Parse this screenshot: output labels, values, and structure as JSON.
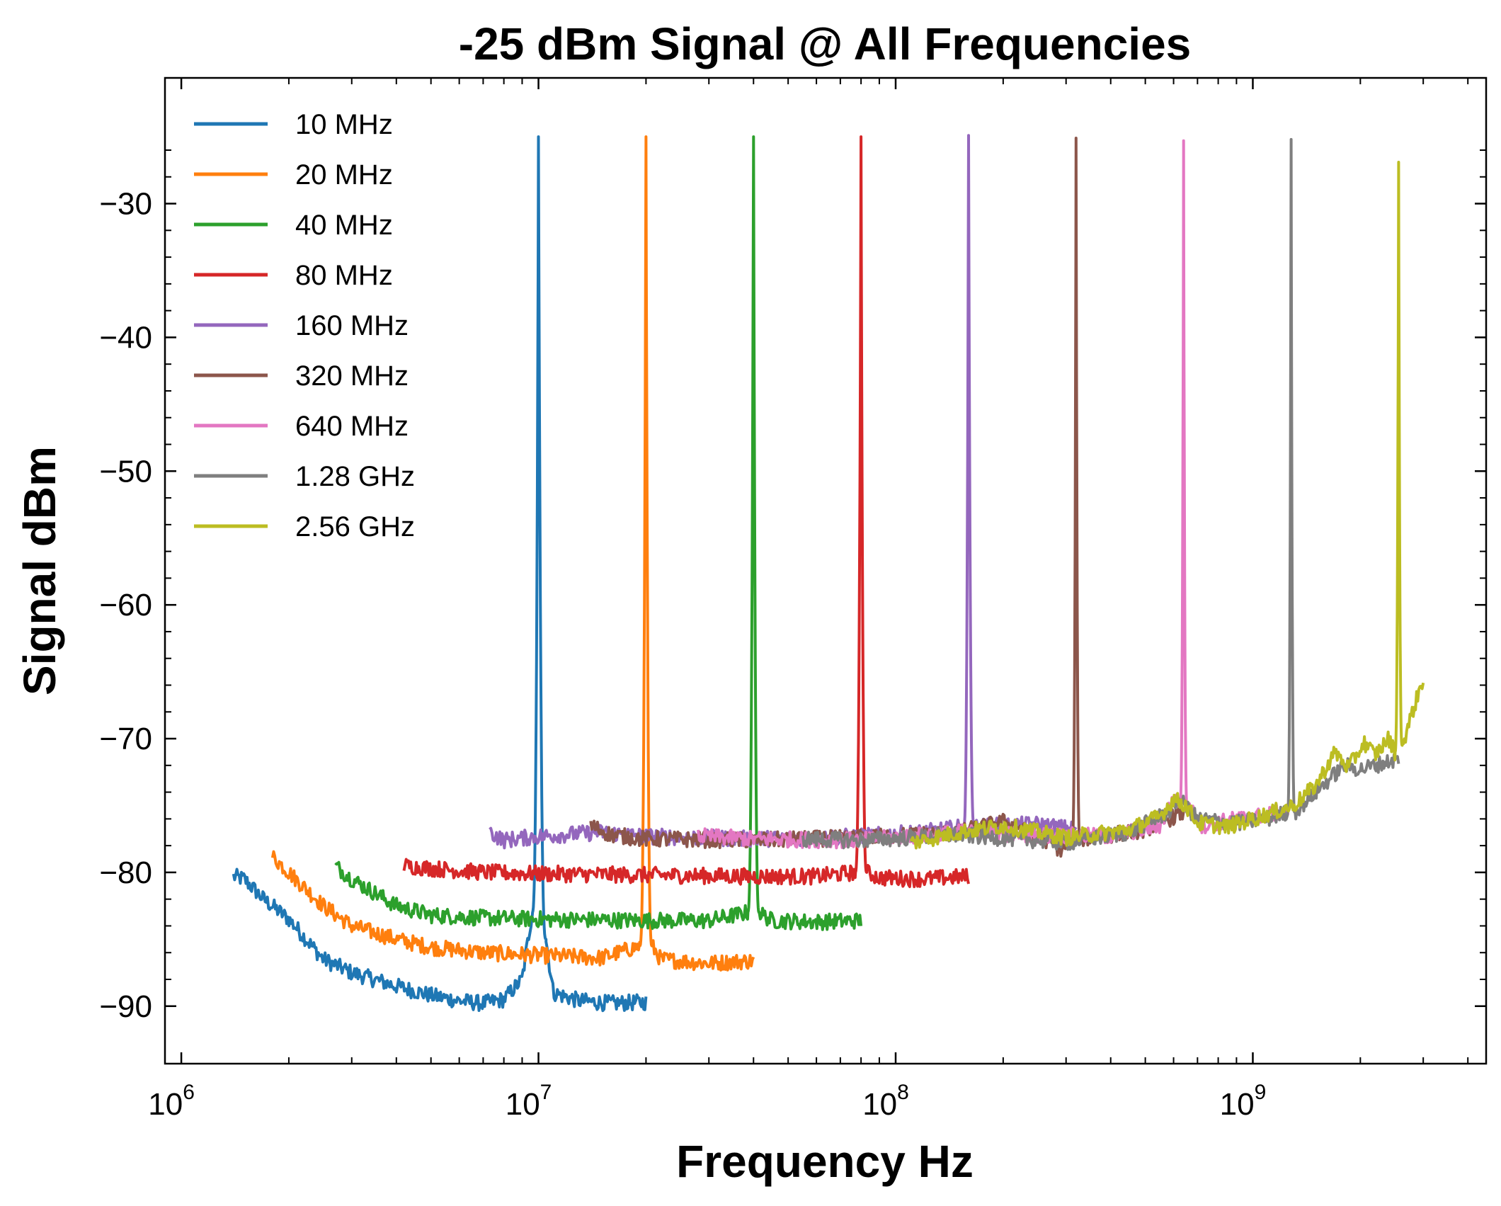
{
  "chart_data": {
    "type": "line",
    "title": "-25 dBm Signal @ All Frequencies",
    "xlabel": "Frequency Hz",
    "ylabel": "Signal dBm",
    "x_scale": "log",
    "xlim": [
      900000,
      4500000000
    ],
    "ylim": [
      -94.3,
      -20.6
    ],
    "x_ticks": [
      {
        "value": 1000000,
        "base": "10",
        "exp": "6"
      },
      {
        "value": 10000000,
        "base": "10",
        "exp": "7"
      },
      {
        "value": 100000000,
        "base": "10",
        "exp": "8"
      },
      {
        "value": 1000000000,
        "base": "10",
        "exp": "9"
      }
    ],
    "y_ticks": [
      {
        "value": -30,
        "label": "−30"
      },
      {
        "value": -40,
        "label": "−40"
      },
      {
        "value": -50,
        "label": "−50"
      },
      {
        "value": -60,
        "label": "−60"
      },
      {
        "value": -70,
        "label": "−70"
      },
      {
        "value": -80,
        "label": "−80"
      },
      {
        "value": -90,
        "label": "−90"
      }
    ],
    "grid": false,
    "legend": "top-left",
    "series": [
      {
        "name": "10 MHz",
        "color": "#1f77b4",
        "peak_freq": 10000000,
        "peak_dbm": -25.0,
        "points": [
          [
            1400000,
            -80.3
          ],
          [
            1500000,
            -80.5
          ],
          [
            1700000,
            -82.0
          ],
          [
            2000000,
            -83.5
          ],
          [
            2500000,
            -86.5
          ],
          [
            3000000,
            -87.5
          ],
          [
            4000000,
            -88.5
          ],
          [
            5000000,
            -89.2
          ],
          [
            6000000,
            -89.6
          ],
          [
            7000000,
            -89.8
          ],
          [
            8000000,
            -89.5
          ],
          [
            9000000,
            -88.0
          ],
          [
            9600000,
            -83.0
          ]
        ],
        "points_after": [
          [
            10500000,
            -85.0
          ],
          [
            11000000,
            -89.0
          ],
          [
            13000000,
            -89.6
          ],
          [
            16000000,
            -89.8
          ],
          [
            20000000,
            -89.7
          ]
        ]
      },
      {
        "name": "20 MHz",
        "color": "#ff7f0e",
        "peak_freq": 20000000,
        "peak_dbm": -25.0,
        "points": [
          [
            1800000,
            -78.8
          ],
          [
            2000000,
            -80.0
          ],
          [
            2500000,
            -82.5
          ],
          [
            3000000,
            -84.0
          ],
          [
            4000000,
            -85.0
          ],
          [
            5000000,
            -85.6
          ],
          [
            7000000,
            -86.0
          ],
          [
            10000000,
            -86.2
          ],
          [
            15000000,
            -86.4
          ],
          [
            19200000,
            -85.5
          ]
        ],
        "points_after": [
          [
            20800000,
            -85.5
          ],
          [
            22000000,
            -86.5
          ],
          [
            30000000,
            -86.8
          ],
          [
            40000000,
            -86.6
          ]
        ]
      },
      {
        "name": "40 MHz",
        "color": "#2ca02c",
        "peak_freq": 40000000,
        "peak_dbm": -25.0,
        "points": [
          [
            2700000,
            -79.5
          ],
          [
            3000000,
            -80.5
          ],
          [
            4000000,
            -82.5
          ],
          [
            5000000,
            -83.2
          ],
          [
            7000000,
            -83.4
          ],
          [
            10000000,
            -83.5
          ],
          [
            20000000,
            -83.6
          ],
          [
            30000000,
            -83.6
          ],
          [
            38500000,
            -83.0
          ]
        ],
        "points_after": [
          [
            41500000,
            -83.0
          ],
          [
            45000000,
            -83.6
          ],
          [
            60000000,
            -83.7
          ],
          [
            80000000,
            -83.6
          ]
        ]
      },
      {
        "name": "80 MHz",
        "color": "#d62728",
        "peak_freq": 80000000,
        "peak_dbm": -25.0,
        "points": [
          [
            4200000,
            -79.5
          ],
          [
            5000000,
            -79.7
          ],
          [
            7000000,
            -80.0
          ],
          [
            10000000,
            -80.1
          ],
          [
            20000000,
            -80.2
          ],
          [
            40000000,
            -80.3
          ],
          [
            60000000,
            -80.3
          ],
          [
            77000000,
            -80.0
          ]
        ],
        "points_after": [
          [
            83000000,
            -80.0
          ],
          [
            90000000,
            -80.4
          ],
          [
            120000000,
            -80.5
          ],
          [
            160000000,
            -80.3
          ]
        ]
      },
      {
        "name": "160 MHz",
        "color": "#9467bd",
        "peak_freq": 160000000,
        "peak_dbm": -24.9,
        "points": [
          [
            7300000,
            -77.0
          ],
          [
            8000000,
            -77.6
          ],
          [
            10000000,
            -77.3
          ],
          [
            15000000,
            -77.0
          ],
          [
            20000000,
            -77.3
          ],
          [
            40000000,
            -77.5
          ],
          [
            80000000,
            -77.3
          ],
          [
            120000000,
            -77.0
          ],
          [
            155000000,
            -76.6
          ]
        ],
        "points_after": [
          [
            166000000,
            -76.6
          ],
          [
            200000000,
            -76.5
          ],
          [
            250000000,
            -76.4
          ],
          [
            320000000,
            -76.8
          ]
        ]
      },
      {
        "name": "320 MHz",
        "color": "#8c564b",
        "peak_freq": 320000000,
        "peak_dbm": -25.1,
        "points": [
          [
            14000000,
            -76.5
          ],
          [
            16000000,
            -77.2
          ],
          [
            20000000,
            -77.5
          ],
          [
            40000000,
            -77.6
          ],
          [
            80000000,
            -77.4
          ],
          [
            150000000,
            -77.0
          ],
          [
            200000000,
            -76.2
          ],
          [
            260000000,
            -77.5
          ],
          [
            290000000,
            -78.3
          ],
          [
            312000000,
            -77.5
          ]
        ],
        "points_after": [
          [
            328000000,
            -77.5
          ],
          [
            400000000,
            -77.2
          ],
          [
            500000000,
            -76.8
          ],
          [
            640000000,
            -75.5
          ]
        ]
      },
      {
        "name": "640 MHz",
        "color": "#e377c2",
        "peak_freq": 640000000,
        "peak_dbm": -25.3,
        "points": [
          [
            28000000,
            -77.3
          ],
          [
            40000000,
            -77.5
          ],
          [
            80000000,
            -77.6
          ],
          [
            150000000,
            -77.0
          ],
          [
            250000000,
            -77.2
          ],
          [
            400000000,
            -77.3
          ],
          [
            550000000,
            -76.5
          ],
          [
            600000000,
            -74.5
          ],
          [
            625000000,
            -75.0
          ]
        ],
        "points_after": [
          [
            655000000,
            -75.0
          ],
          [
            720000000,
            -76.5
          ],
          [
            900000000,
            -76.0
          ],
          [
            1100000000,
            -75.7
          ],
          [
            1280000000,
            -75.3
          ]
        ]
      },
      {
        "name": "1.28 GHz",
        "color": "#7f7f7f",
        "peak_freq": 1280000000,
        "peak_dbm": -25.2,
        "points": [
          [
            55000000,
            -77.5
          ],
          [
            80000000,
            -77.6
          ],
          [
            150000000,
            -77.2
          ],
          [
            250000000,
            -77.6
          ],
          [
            300000000,
            -77.8
          ],
          [
            450000000,
            -77.0
          ],
          [
            580000000,
            -75.5
          ],
          [
            620000000,
            -74.5
          ],
          [
            700000000,
            -76.0
          ],
          [
            900000000,
            -76.3
          ],
          [
            1100000000,
            -76.0
          ],
          [
            1250000000,
            -75.5
          ]
        ],
        "points_after": [
          [
            1310000000,
            -75.5
          ],
          [
            1500000000,
            -74.0
          ],
          [
            1800000000,
            -72.0
          ],
          [
            2000000000,
            -72.3
          ],
          [
            2560000000,
            -71.5
          ]
        ]
      },
      {
        "name": "2.56 GHz",
        "color": "#bcbd22",
        "peak_freq": 2560000000,
        "peak_dbm": -26.9,
        "points": [
          [
            110000000,
            -77.8
          ],
          [
            150000000,
            -77.0
          ],
          [
            200000000,
            -76.5
          ],
          [
            300000000,
            -77.4
          ],
          [
            450000000,
            -76.8
          ],
          [
            550000000,
            -75.8
          ],
          [
            600000000,
            -74.5
          ],
          [
            650000000,
            -75.0
          ],
          [
            700000000,
            -76.3
          ],
          [
            850000000,
            -76.6
          ],
          [
            1000000000,
            -76.0
          ],
          [
            1300000000,
            -75.0
          ],
          [
            1500000000,
            -73.5
          ],
          [
            1700000000,
            -71.0
          ],
          [
            1850000000,
            -72.2
          ],
          [
            2050000000,
            -70.3
          ],
          [
            2200000000,
            -71.2
          ],
          [
            2400000000,
            -70.0
          ],
          [
            2500000000,
            -71.0
          ]
        ],
        "points_after": [
          [
            2620000000,
            -70.5
          ],
          [
            2800000000,
            -68.0
          ],
          [
            3000000000,
            -65.5
          ]
        ]
      }
    ]
  }
}
